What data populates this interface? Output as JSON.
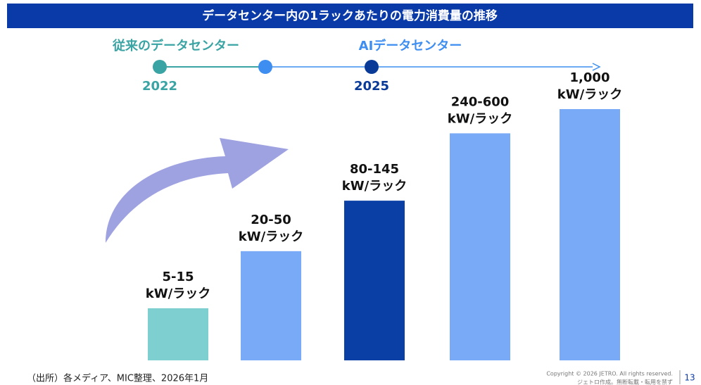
{
  "chart_data": {
    "type": "bar",
    "title": "データセンター内の1ラックあたりの電力消費量の推移",
    "categories": [
      null,
      null,
      null,
      null,
      null
    ],
    "values": [
      15,
      50,
      145,
      600,
      1000
    ],
    "value_labels": [
      "5-15",
      "20-50",
      "80-145",
      "240-600",
      "1,000"
    ],
    "unit": "kW/ラック",
    "colors": [
      "#7ecfd0",
      "#79aaf8",
      "#0a3fa6",
      "#79aaf8",
      "#79aaf8"
    ],
    "log_scale": true,
    "ylim": [
      5,
      1000
    ],
    "annotations": [
      "従来のデータセンター",
      "AIデータセンター",
      "2022",
      "2025"
    ]
  },
  "footer": {
    "source": "（出所）各メディア、MIC整理、2026年1月",
    "copyright": "Copyright © 2026 JETRO. All rights reserved.",
    "notice": "ジェトロ作成。無断転載・転用を禁ず",
    "page": "13"
  }
}
